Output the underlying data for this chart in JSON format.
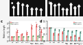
{
  "panel_labels": [
    "a",
    "b",
    "c",
    "d"
  ],
  "chart_c": {
    "categories": [
      "WT",
      "brd1",
      "d61",
      "osbri1",
      "brd1/\nd61",
      "brd1/\nosbri1",
      "d61/\nosbri1"
    ],
    "n_cats": 7,
    "series1_values": [
      1.0,
      2.2,
      1.5,
      1.8,
      3.2,
      3.6,
      2.3
    ],
    "series2_values": [
      1.0,
      1.05,
      1.0,
      1.05,
      1.1,
      1.15,
      1.05
    ],
    "series1_color": "#f4a0a0",
    "series2_color": "#b8d8b0",
    "series1_err": [
      0.08,
      0.25,
      0.18,
      0.22,
      0.35,
      0.32,
      0.28
    ],
    "series2_err": [
      0.04,
      0.06,
      0.05,
      0.06,
      0.07,
      0.08,
      0.06
    ],
    "ylabel": "Relative length",
    "ylim": [
      0,
      4.5
    ],
    "yticks": [
      0,
      1,
      2,
      3,
      4
    ]
  },
  "chart_d": {
    "categories": [
      "WT",
      "d10",
      "d14",
      "d17",
      "d10/\nd14",
      "d10/\nd17",
      "d14/\nd17",
      "d10/d14\n/d17"
    ],
    "n_cats": 8,
    "series1_values": [
      1.0,
      0.55,
      0.5,
      0.65,
      0.38,
      0.32,
      0.42,
      0.25
    ],
    "series2_values": [
      1.0,
      0.88,
      0.82,
      0.9,
      0.78,
      0.72,
      0.8,
      0.68
    ],
    "series1_color": "#f4a0a0",
    "series2_color": "#98ccc0",
    "series1_err": [
      0.04,
      0.07,
      0.06,
      0.08,
      0.05,
      0.04,
      0.06,
      0.04
    ],
    "series2_err": [
      0.03,
      0.06,
      0.05,
      0.07,
      0.04,
      0.04,
      0.05,
      0.04
    ],
    "ylabel": "Relative length",
    "ylim": [
      0,
      1.5
    ],
    "yticks": [
      0,
      0.5,
      1.0,
      1.5
    ]
  },
  "bg_color": "#f5f5f5",
  "img_bg": "#111111",
  "n_plants_a": 7,
  "n_plants_b": 8
}
